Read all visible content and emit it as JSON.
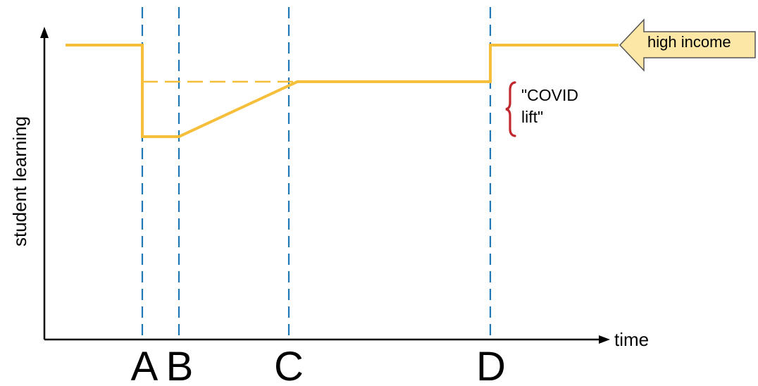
{
  "axes": {
    "y_label": "student learning",
    "x_label": "time"
  },
  "markers": [
    {
      "key": "a",
      "label": "A"
    },
    {
      "key": "b",
      "label": "B"
    },
    {
      "key": "c",
      "label": "C"
    },
    {
      "key": "d",
      "label": "D"
    }
  ],
  "annotation": {
    "line1": "\"COVID",
    "line2": "lift\""
  },
  "callout": {
    "label": "high income"
  },
  "colors": {
    "series": "#f5bf3c",
    "marker_lines": "#1f77b4",
    "axis": "#000000",
    "bracket": "#c0282e",
    "callout_fill": "#fce7a6",
    "callout_stroke": "#555555"
  }
}
